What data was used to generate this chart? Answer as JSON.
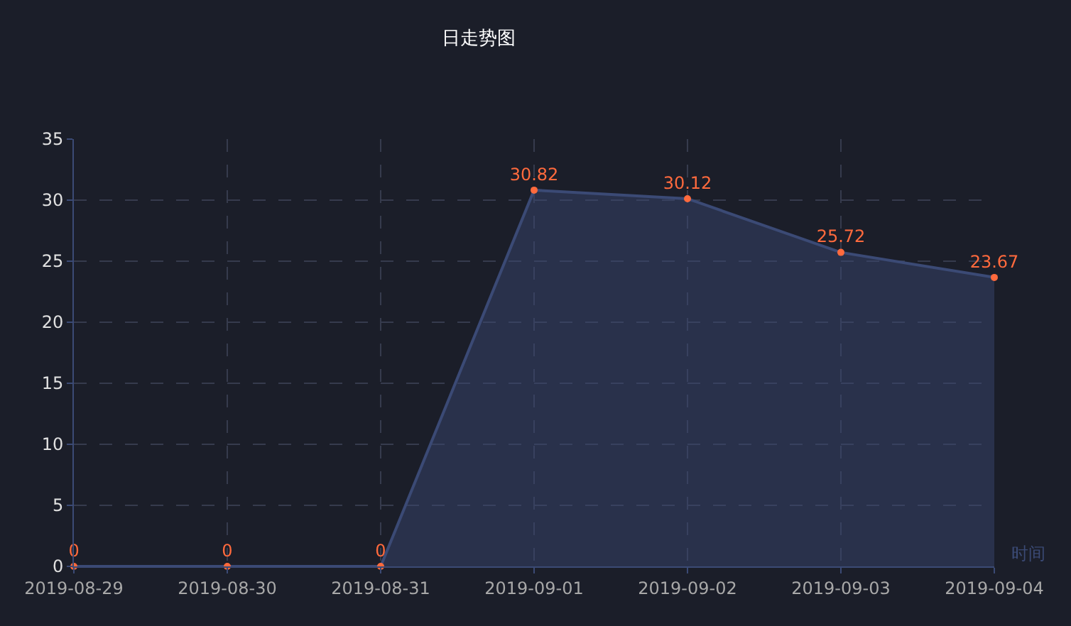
{
  "chart_data": {
    "type": "area",
    "title": "日走势图",
    "xlabel": "时间",
    "categories": [
      "2019-08-29",
      "2019-08-30",
      "2019-08-31",
      "2019-09-01",
      "2019-09-02",
      "2019-09-03",
      "2019-09-04"
    ],
    "series": [
      {
        "color": "#3b4a75",
        "values": [
          0,
          0,
          0,
          30.82,
          30.12,
          25.72,
          23.67
        ]
      }
    ],
    "ylim": [
      0,
      35
    ],
    "yticks": [
      0,
      5,
      10,
      15,
      20,
      25,
      30,
      35
    ],
    "grid": true,
    "marker": "circle",
    "line_style": "solid",
    "data_labels": true
  }
}
